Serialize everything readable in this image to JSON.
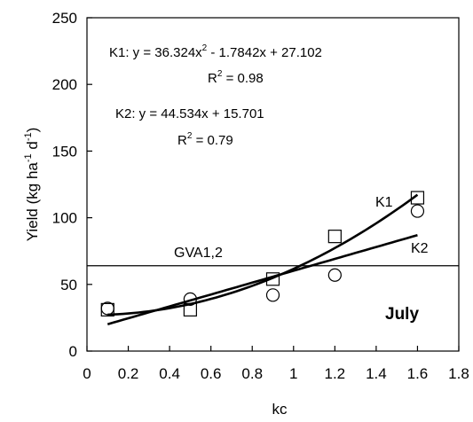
{
  "chart_data": {
    "type": "scatter",
    "xlabel": "kc",
    "ylabel": "Yield (kg ha-1 d-1)",
    "ylabel_parts": {
      "main": "Yield (kg ha",
      "exp1": "-1",
      "mid": " d",
      "exp2": "-1",
      "end": ")"
    },
    "xlim": [
      0,
      1.8
    ],
    "ylim": [
      0,
      250
    ],
    "xticks": [
      0,
      0.2,
      0.4,
      0.6,
      0.8,
      1,
      1.2,
      1.4,
      1.6,
      1.8
    ],
    "xtick_labels": [
      "0",
      "0.2",
      "0.4",
      "0.6",
      "0.8",
      "1",
      "1.2",
      "1.4",
      "1.6",
      "1.8"
    ],
    "yticks": [
      0,
      50,
      100,
      150,
      200,
      250
    ],
    "ytick_labels": [
      "0",
      "50",
      "100",
      "150",
      "200",
      "250"
    ],
    "grid": false,
    "series": [
      {
        "name": "K1",
        "marker": "square",
        "x": [
          0.1,
          0.5,
          0.9,
          1.2,
          1.6
        ],
        "y": [
          31,
          31,
          54,
          86,
          115
        ]
      },
      {
        "name": "K2",
        "marker": "circle",
        "x": [
          0.1,
          0.5,
          0.9,
          1.2,
          1.6
        ],
        "y": [
          32,
          39,
          42,
          57,
          105
        ]
      }
    ],
    "fits": [
      {
        "name": "K1",
        "kind": "poly2",
        "coef": [
          36.324,
          -1.7842,
          27.102
        ],
        "xrange": [
          0.1,
          1.6
        ]
      },
      {
        "name": "K2",
        "kind": "linear",
        "coef": [
          44.534,
          15.701
        ],
        "xrange": [
          0.1,
          1.6
        ]
      }
    ],
    "reference_line": {
      "label": "GVA1,2",
      "y": 64
    },
    "annotations": {
      "k1_eq_a": "K1: y = 36.324x",
      "k1_eq_sup": "2",
      "k1_eq_b": " - 1.7842x + 27.102",
      "k1_r2_a": "R",
      "k1_r2_sup": "2",
      "k1_r2_b": " = 0.98",
      "k2_eq": "K2: y = 44.534x + 15.701",
      "k2_r2_a": "R",
      "k2_r2_sup": "2",
      "k2_r2_b": " = 0.79",
      "month": "July",
      "k1_label": "K1",
      "k2_label": "K2"
    }
  }
}
